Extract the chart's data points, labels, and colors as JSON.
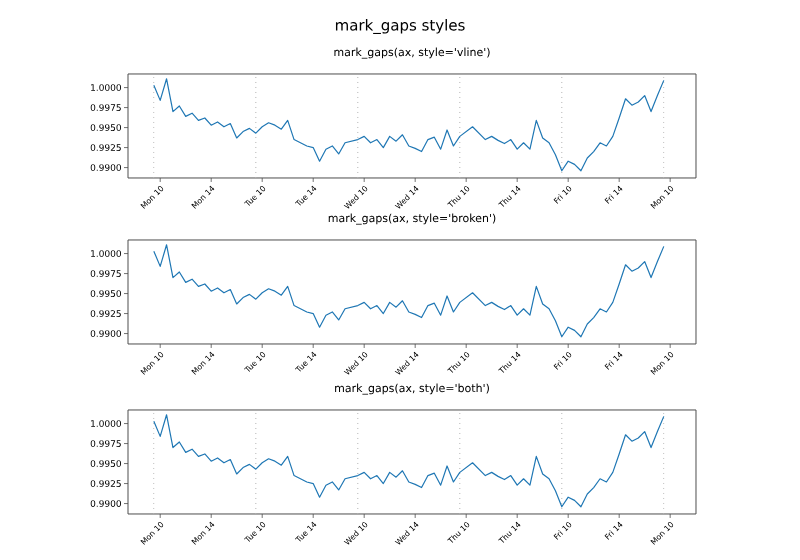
{
  "chart_data": [
    {
      "type": "other",
      "title": "mark_gaps styles"
    },
    {
      "type": "line",
      "title": "mark_gaps(ax, style='vline')",
      "color": "#1f77b4",
      "categories": [
        null,
        "Mon 10",
        null,
        null,
        null,
        null,
        null,
        null,
        null,
        "Mon 14",
        null,
        null,
        null,
        null,
        null,
        null,
        null,
        "Tue 10",
        null,
        null,
        null,
        null,
        null,
        null,
        null,
        "Tue 14",
        null,
        null,
        null,
        null,
        null,
        null,
        null,
        "Wed 10",
        null,
        null,
        null,
        null,
        null,
        null,
        null,
        "Wed 14",
        null,
        null,
        null,
        null,
        null,
        null,
        null,
        "Thu 10",
        null,
        null,
        null,
        null,
        null,
        null,
        null,
        "Thu 14",
        null,
        null,
        null,
        null,
        null,
        null,
        null,
        "Fri 10",
        null,
        null,
        null,
        null,
        null,
        null,
        null,
        "Fri 14",
        null,
        null,
        null,
        null,
        null,
        null,
        null,
        "Mon 10"
      ],
      "values": [
        1.0003,
        0.9984,
        1.0011,
        0.997,
        0.9977,
        0.9964,
        0.9968,
        0.9959,
        0.9962,
        0.9953,
        0.9957,
        0.9951,
        0.9955,
        0.9937,
        0.9945,
        0.9949,
        0.9943,
        0.9951,
        0.9956,
        0.9953,
        0.9948,
        0.9959,
        0.9935,
        0.9931,
        0.9927,
        0.9925,
        0.9908,
        0.9923,
        0.9927,
        0.9917,
        0.9931,
        0.9933,
        0.9935,
        0.9939,
        0.9931,
        0.9935,
        0.9925,
        0.9939,
        0.9933,
        0.9941,
        0.9927,
        0.9924,
        0.992,
        0.9935,
        0.9938,
        0.9923,
        0.9947,
        0.9927,
        0.9939,
        0.9945,
        0.9951,
        0.9943,
        0.9935,
        0.9939,
        0.9934,
        0.993,
        0.9935,
        0.9923,
        0.9931,
        0.9923,
        0.9959,
        0.9937,
        0.9931,
        0.9916,
        0.9896,
        0.9908,
        0.9904,
        0.9896,
        0.9912,
        0.992,
        0.9931,
        0.9927,
        0.9939,
        0.9962,
        0.9986,
        0.9978,
        0.9982,
        0.999,
        0.997,
        0.999,
        1.0009,
        null
      ],
      "ylim": [
        0.9887,
        1.0017
      ],
      "yticks": [
        {
          "value": 0.99,
          "label": "0.9900"
        },
        {
          "value": 0.9925,
          "label": "0.9925"
        },
        {
          "value": 0.995,
          "label": "0.9950"
        },
        {
          "value": 0.9975,
          "label": "0.9975"
        },
        {
          "value": 1.0,
          "label": "1.0000"
        }
      ],
      "grid": "x"
    },
    {
      "type": "line",
      "title": "mark_gaps(ax, style='broken')",
      "color": "#1f77b4",
      "categories": [
        null,
        "Mon 10",
        null,
        null,
        null,
        null,
        null,
        null,
        null,
        "Mon 14",
        null,
        null,
        null,
        null,
        null,
        null,
        null,
        "Tue 10",
        null,
        null,
        null,
        null,
        null,
        null,
        null,
        "Tue 14",
        null,
        null,
        null,
        null,
        null,
        null,
        null,
        "Wed 10",
        null,
        null,
        null,
        null,
        null,
        null,
        null,
        "Wed 14",
        null,
        null,
        null,
        null,
        null,
        null,
        null,
        "Thu 10",
        null,
        null,
        null,
        null,
        null,
        null,
        null,
        "Thu 14",
        null,
        null,
        null,
        null,
        null,
        null,
        null,
        "Fri 10",
        null,
        null,
        null,
        null,
        null,
        null,
        null,
        "Fri 14",
        null,
        null,
        null,
        null,
        null,
        null,
        null,
        "Mon 10"
      ],
      "values": [
        1.0003,
        0.9984,
        1.0011,
        0.997,
        0.9977,
        0.9964,
        0.9968,
        0.9959,
        0.9962,
        0.9953,
        0.9957,
        0.9951,
        0.9955,
        0.9937,
        0.9945,
        0.9949,
        0.9943,
        0.9951,
        0.9956,
        0.9953,
        0.9948,
        0.9959,
        0.9935,
        0.9931,
        0.9927,
        0.9925,
        0.9908,
        0.9923,
        0.9927,
        0.9917,
        0.9931,
        0.9933,
        0.9935,
        0.9939,
        0.9931,
        0.9935,
        0.9925,
        0.9939,
        0.9933,
        0.9941,
        0.9927,
        0.9924,
        0.992,
        0.9935,
        0.9938,
        0.9923,
        0.9947,
        0.9927,
        0.9939,
        0.9945,
        0.9951,
        0.9943,
        0.9935,
        0.9939,
        0.9934,
        0.993,
        0.9935,
        0.9923,
        0.9931,
        0.9923,
        0.9959,
        0.9937,
        0.9931,
        0.9916,
        0.9896,
        0.9908,
        0.9904,
        0.9896,
        0.9912,
        0.992,
        0.9931,
        0.9927,
        0.9939,
        0.9962,
        0.9986,
        0.9978,
        0.9982,
        0.999,
        0.997,
        0.999,
        1.0009,
        null
      ],
      "ylim": [
        0.9887,
        1.0017
      ],
      "yticks": [
        {
          "value": 0.99,
          "label": "0.9900"
        },
        {
          "value": 0.9925,
          "label": "0.9925"
        },
        {
          "value": 0.995,
          "label": "0.9950"
        },
        {
          "value": 0.9975,
          "label": "0.9975"
        },
        {
          "value": 1.0,
          "label": "1.0000"
        }
      ]
    },
    {
      "type": "line",
      "title": "mark_gaps(ax, style='both')",
      "color": "#1f77b4",
      "categories": [
        null,
        "Mon 10",
        null,
        null,
        null,
        null,
        null,
        null,
        null,
        "Mon 14",
        null,
        null,
        null,
        null,
        null,
        null,
        null,
        "Tue 10",
        null,
        null,
        null,
        null,
        null,
        null,
        null,
        "Tue 14",
        null,
        null,
        null,
        null,
        null,
        null,
        null,
        "Wed 10",
        null,
        null,
        null,
        null,
        null,
        null,
        null,
        "Wed 14",
        null,
        null,
        null,
        null,
        null,
        null,
        null,
        "Thu 10",
        null,
        null,
        null,
        null,
        null,
        null,
        null,
        "Thu 14",
        null,
        null,
        null,
        null,
        null,
        null,
        null,
        "Fri 10",
        null,
        null,
        null,
        null,
        null,
        null,
        null,
        "Fri 14",
        null,
        null,
        null,
        null,
        null,
        null,
        null,
        "Mon 10"
      ],
      "values": [
        1.0003,
        0.9984,
        1.0011,
        0.997,
        0.9977,
        0.9964,
        0.9968,
        0.9959,
        0.9962,
        0.9953,
        0.9957,
        0.9951,
        0.9955,
        0.9937,
        0.9945,
        0.9949,
        0.9943,
        0.9951,
        0.9956,
        0.9953,
        0.9948,
        0.9959,
        0.9935,
        0.9931,
        0.9927,
        0.9925,
        0.9908,
        0.9923,
        0.9927,
        0.9917,
        0.9931,
        0.9933,
        0.9935,
        0.9939,
        0.9931,
        0.9935,
        0.9925,
        0.9939,
        0.9933,
        0.9941,
        0.9927,
        0.9924,
        0.992,
        0.9935,
        0.9938,
        0.9923,
        0.9947,
        0.9927,
        0.9939,
        0.9945,
        0.9951,
        0.9943,
        0.9935,
        0.9939,
        0.9934,
        0.993,
        0.9935,
        0.9923,
        0.9931,
        0.9923,
        0.9959,
        0.9937,
        0.9931,
        0.9916,
        0.9896,
        0.9908,
        0.9904,
        0.9896,
        0.9912,
        0.992,
        0.9931,
        0.9927,
        0.9939,
        0.9962,
        0.9986,
        0.9978,
        0.9982,
        0.999,
        0.997,
        0.999,
        1.0009,
        null
      ],
      "ylim": [
        0.9887,
        1.0017
      ],
      "yticks": [
        {
          "value": 0.99,
          "label": "0.9900"
        },
        {
          "value": 0.9925,
          "label": "0.9925"
        },
        {
          "value": 0.995,
          "label": "0.9950"
        },
        {
          "value": 0.9975,
          "label": "0.9975"
        },
        {
          "value": 1.0,
          "label": "1.0000"
        }
      ],
      "grid": "x"
    }
  ]
}
